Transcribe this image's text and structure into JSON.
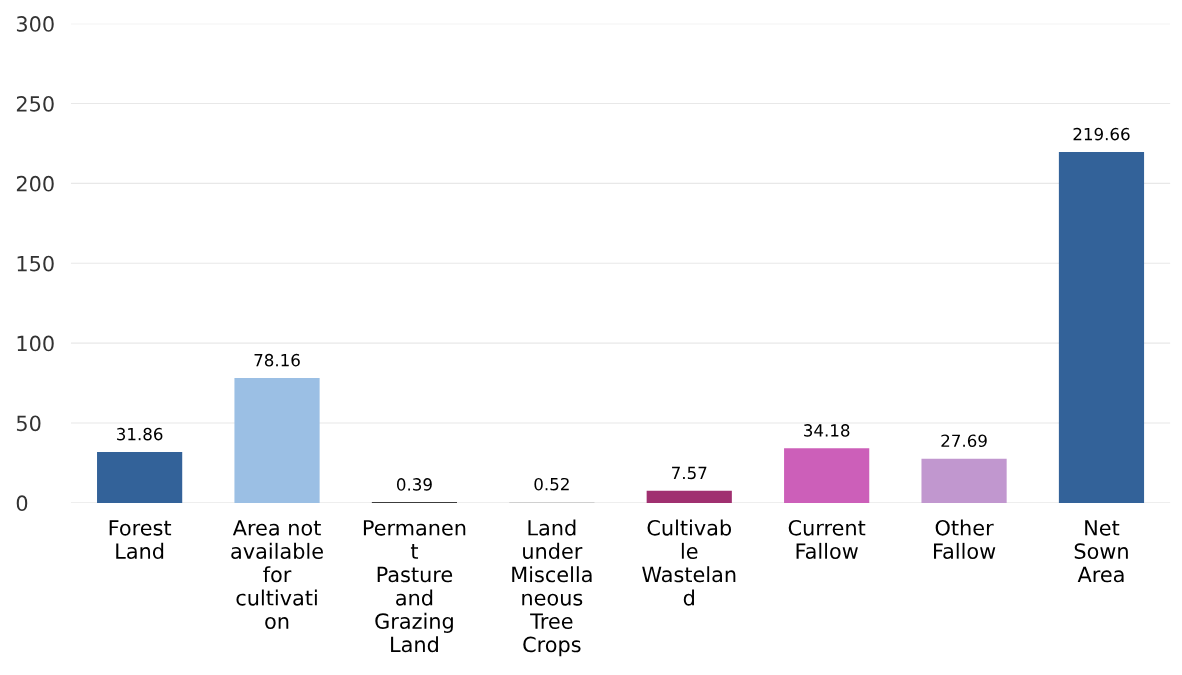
{
  "chart_data": {
    "type": "bar",
    "categories": [
      "Forest\nLand",
      "Area not\navailable\nfor\ncultivati\non",
      "Permanen\nt\nPasture\nand\nGrazing\nLand",
      "Land\nunder\nMiscella\nneous\nTree\nCrops",
      "Cultivab\nle\nWastelan\nd",
      "Current\nFallow",
      "Other\nFallow",
      "Net\nSown\nArea"
    ],
    "values": [
      31.86,
      78.16,
      0.39,
      0.52,
      7.57,
      34.18,
      27.69,
      219.66
    ],
    "colors": [
      "#336299",
      "#9bbfe4",
      "#000000",
      "#d0d0d0",
      "#a03070",
      "#cc5fb9",
      "#c197cf",
      "#336299"
    ],
    "data_labels": true,
    "ylim": [
      0,
      300
    ],
    "yticks": [
      0,
      50,
      100,
      150,
      200,
      250,
      300
    ],
    "grid": "y"
  }
}
